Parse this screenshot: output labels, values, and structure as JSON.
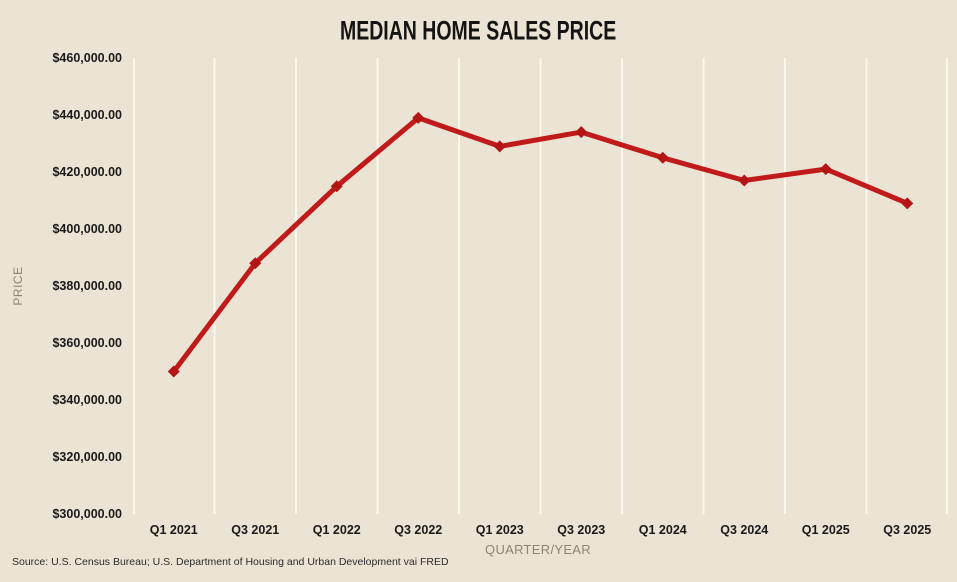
{
  "chart": {
    "title": "MEDIAN HOME SALES PRICE",
    "ylabel": "PRICE",
    "xlabel": "QUARTER/YEAR",
    "source": "Source: U.S. Census Bureau; U.S. Department of Housing and Urban Development vai FRED"
  },
  "chart_data": {
    "type": "line",
    "title": "MEDIAN HOME SALES PRICE",
    "xlabel": "QUARTER/YEAR",
    "ylabel": "PRICE",
    "categories": [
      "Q1 2021",
      "Q3 2021",
      "Q1 2022",
      "Q3 2022",
      "Q1 2023",
      "Q3 2023",
      "Q1 2024",
      "Q3 2024",
      "Q1 2025",
      "Q3 2025"
    ],
    "values": [
      350000,
      388000,
      415000,
      439000,
      429000,
      434000,
      425000,
      417000,
      421000,
      409000
    ],
    "ylim": [
      300000,
      460000
    ],
    "ytick_step": 20000,
    "ytick_labels": [
      "$460,000.00",
      "$440,000.00",
      "$420,000.00",
      "$400,000.00",
      "$380,000.00",
      "$360,000.00",
      "$340,000.00",
      "$320,000.00",
      "$300,000.00"
    ],
    "grid": "vertical-only",
    "legend": "none",
    "marker": "diamond",
    "colors": {
      "line": "#C01A1A",
      "marker": "#B31515",
      "background": "#EBE3D3",
      "gridline": "#FBF8EF",
      "tick_text": "#1A1A1A",
      "axis_title_text": "#8C8577",
      "title_text": "#141414"
    }
  }
}
